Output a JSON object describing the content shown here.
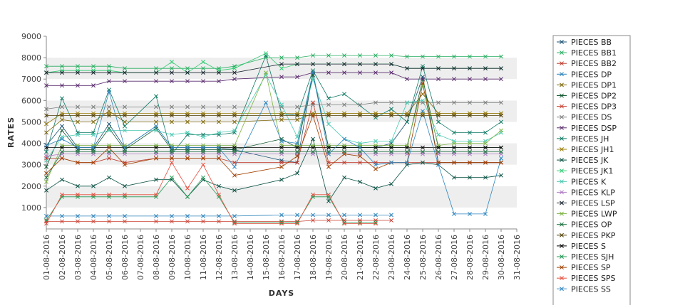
{
  "chart_data": {
    "type": "line",
    "title": "",
    "xlabel": "DAYS",
    "ylabel": "RATES",
    "ylim": [
      0,
      9000
    ],
    "yticks": [
      1000,
      2000,
      3000,
      4000,
      5000,
      6000,
      7000,
      8000,
      9000
    ],
    "grid": "alternating horizontal bands",
    "legend_position": "right",
    "x": [
      "01-08-2016",
      "02-08-2016",
      "03-08-2016",
      "04-08-2016",
      "05-08-2016",
      "06-08-2016",
      "07-08-2016",
      "08-08-2016",
      "09-08-2016",
      "10-08-2016",
      "11-08-2016",
      "12-08-2016",
      "13-08-2016",
      "14-08-2016",
      "15-08-2016",
      "16-08-2016",
      "17-08-2016",
      "18-08-2016",
      "19-08-2016",
      "20-08-2016",
      "21-08-2016",
      "22-08-2016",
      "23-08-2016",
      "24-08-2016",
      "25-08-2016",
      "26-08-2016",
      "27-08-2016",
      "28-08-2016",
      "29-08-2016",
      "30-08-2016",
      "31-08-2016"
    ],
    "series": [
      {
        "name": "PIECES BB",
        "color": "#1a5276",
        "values": [
          3900,
          4800,
          3800,
          3800,
          4900,
          3800,
          null,
          4800,
          3800,
          3800,
          3800,
          3800,
          3700,
          null,
          null,
          3200,
          3100,
          7300,
          3800,
          3800,
          3800,
          3800,
          4000,
          5000,
          7100,
          3100,
          3100,
          3100,
          3100,
          3100,
          null
        ]
      },
      {
        "name": "PIECES BB1",
        "color": "#27ae60",
        "values": [
          7600,
          7600,
          7600,
          7600,
          7600,
          7500,
          null,
          7500,
          7500,
          7500,
          7500,
          7500,
          7600,
          null,
          8000,
          8000,
          8000,
          8100,
          8100,
          8100,
          8100,
          8100,
          8100,
          8050,
          8050,
          8050,
          8050,
          8050,
          8050,
          8050,
          null
        ]
      },
      {
        "name": "PIECES BB2",
        "color": "#c0392b",
        "values": [
          3300,
          3300,
          3100,
          3100,
          3300,
          3100,
          null,
          3300,
          3300,
          3300,
          3300,
          3300,
          3100,
          null,
          null,
          3100,
          3100,
          5900,
          3100,
          3100,
          3100,
          3100,
          3100,
          3100,
          3100,
          3100,
          3100,
          3100,
          3100,
          3100,
          null
        ]
      },
      {
        "name": "PIECES DP",
        "color": "#2980b9",
        "values": [
          600,
          600,
          600,
          600,
          600,
          600,
          null,
          600,
          600,
          600,
          600,
          600,
          600,
          null,
          null,
          650,
          650,
          650,
          650,
          650,
          650,
          650,
          650,
          null,
          null,
          null,
          null,
          null,
          null,
          null,
          null
        ]
      },
      {
        "name": "PIECES DP1",
        "color": "#7d6608",
        "values": [
          4500,
          5100,
          5000,
          5000,
          5500,
          5000,
          null,
          5000,
          5000,
          5000,
          5000,
          5000,
          5000,
          null,
          null,
          5100,
          5100,
          5400,
          5400,
          5400,
          5400,
          5400,
          5400,
          5400,
          6300,
          5400,
          5400,
          5400,
          5400,
          5400,
          null
        ]
      },
      {
        "name": "PIECES DP2",
        "color": "#145a32",
        "values": [
          2900,
          4600,
          3700,
          3700,
          4700,
          3700,
          null,
          4700,
          3700,
          3700,
          3700,
          3700,
          3700,
          null,
          null,
          4200,
          3800,
          7200,
          3800,
          3800,
          3800,
          3800,
          3800,
          3800,
          7000,
          3800,
          3800,
          3800,
          3800,
          3800,
          null
        ]
      },
      {
        "name": "PIECES DP3",
        "color": "#cb4335",
        "values": [
          350,
          350,
          350,
          350,
          350,
          350,
          null,
          350,
          350,
          350,
          350,
          350,
          350,
          null,
          null,
          350,
          350,
          400,
          400,
          400,
          400,
          400,
          400,
          null,
          null,
          null,
          null,
          null,
          null,
          null,
          null
        ]
      },
      {
        "name": "PIECES DS",
        "color": "#7b7d7d",
        "values": [
          5600,
          5700,
          5700,
          5700,
          5700,
          5700,
          null,
          5700,
          5700,
          5700,
          5700,
          5700,
          5700,
          null,
          null,
          5700,
          5700,
          5800,
          5800,
          5800,
          5800,
          5900,
          5900,
          5900,
          5900,
          5900,
          5900,
          5900,
          5900,
          5900,
          null
        ]
      },
      {
        "name": "PIECES DSP",
        "color": "#5b2c6f",
        "values": [
          6700,
          6700,
          6700,
          6700,
          6900,
          6900,
          null,
          6900,
          6900,
          6900,
          6900,
          6900,
          7000,
          null,
          null,
          7100,
          7100,
          7300,
          7300,
          7300,
          7300,
          7300,
          7300,
          7000,
          7000,
          7000,
          7000,
          7000,
          7000,
          7000,
          null
        ]
      },
      {
        "name": "PIECES JH",
        "color": "#117a65",
        "values": [
          3600,
          6100,
          4500,
          4500,
          6500,
          4800,
          null,
          6200,
          3500,
          4400,
          4400,
          4400,
          4500,
          null,
          8100,
          5400,
          5300,
          7400,
          6100,
          6300,
          null,
          5200,
          5600,
          5000,
          7600,
          5000,
          4500,
          4500,
          4500,
          5000,
          null
        ]
      },
      {
        "name": "PIECES JH1",
        "color": "#9a7d0a",
        "values": [
          4900,
          5400,
          5400,
          5400,
          5400,
          5400,
          null,
          5400,
          5400,
          5400,
          5400,
          5400,
          5400,
          null,
          null,
          5400,
          5400,
          5400,
          5400,
          5400,
          5400,
          5400,
          5400,
          5400,
          5400,
          5400,
          5400,
          5400,
          5400,
          5400,
          null
        ]
      },
      {
        "name": "PIECES JK",
        "color": "#0b5345",
        "values": [
          1800,
          2300,
          2000,
          2000,
          2400,
          2000,
          null,
          2300,
          2300,
          1500,
          2300,
          2000,
          1800,
          null,
          null,
          2300,
          2600,
          4200,
          1300,
          2400,
          2200,
          1900,
          2100,
          3000,
          3100,
          3000,
          2400,
          2400,
          2400,
          2500,
          null
        ]
      },
      {
        "name": "PIECES JK1",
        "color": "#2ecc71",
        "values": [
          7300,
          7400,
          7400,
          7400,
          7400,
          7300,
          null,
          7300,
          7800,
          7300,
          7800,
          7400,
          7500,
          null,
          8200,
          7500,
          7700,
          7700,
          7700,
          7700,
          7700,
          7700,
          7700,
          7500,
          7500,
          7500,
          7500,
          7500,
          7500,
          7500,
          null
        ]
      },
      {
        "name": "PIECES K",
        "color": "#48c9b0",
        "values": [
          3200,
          4300,
          4400,
          4400,
          4600,
          4600,
          null,
          4600,
          4400,
          4500,
          4300,
          4500,
          4600,
          null,
          7200,
          5800,
          4300,
          7000,
          4900,
          4200,
          4000,
          4100,
          4100,
          5900,
          6000,
          4400,
          4100,
          4100,
          4100,
          4500,
          null
        ]
      },
      {
        "name": "PIECES KLP",
        "color": "#af7ac5",
        "values": [
          3400,
          3500,
          3500,
          3500,
          3500,
          3500,
          null,
          3500,
          3500,
          3500,
          3500,
          3500,
          3500,
          null,
          null,
          3500,
          3500,
          3500,
          3500,
          3500,
          3500,
          3500,
          3500,
          3500,
          3500,
          3500,
          3500,
          3500,
          3500,
          3500,
          null
        ]
      },
      {
        "name": "PIECES LSP",
        "color": "#1b2631",
        "values": [
          7300,
          7300,
          7300,
          7300,
          7300,
          7300,
          null,
          7300,
          7300,
          7300,
          7300,
          7300,
          7300,
          null,
          null,
          7700,
          7700,
          7700,
          7700,
          7700,
          7700,
          7700,
          7700,
          7500,
          7500,
          7500,
          7500,
          7500,
          7500,
          7500,
          null
        ]
      },
      {
        "name": "PIECES LWP",
        "color": "#7cb342",
        "values": [
          2200,
          3900,
          3900,
          3900,
          3900,
          3900,
          null,
          3900,
          3900,
          3900,
          3900,
          3900,
          3900,
          null,
          7300,
          3900,
          3900,
          3900,
          3900,
          3900,
          3900,
          3900,
          3900,
          3900,
          6700,
          3900,
          4000,
          4000,
          4000,
          4600,
          null
        ]
      },
      {
        "name": "PIECES OP",
        "color": "#196f3d",
        "values": [
          2400,
          3600,
          3600,
          3600,
          3600,
          3600,
          null,
          3600,
          3600,
          3600,
          3600,
          3600,
          3600,
          null,
          null,
          3600,
          3600,
          3600,
          3600,
          3600,
          3600,
          3600,
          3600,
          3600,
          3600,
          3600,
          3600,
          3600,
          3600,
          3600,
          null
        ]
      },
      {
        "name": "PIECES PKP",
        "color": "#4d3b00",
        "values": [
          5300,
          5300,
          5300,
          5300,
          5300,
          5300,
          null,
          5300,
          5300,
          5300,
          5300,
          5300,
          5300,
          null,
          null,
          5300,
          5300,
          5300,
          5300,
          5300,
          5300,
          5300,
          5300,
          5300,
          5300,
          5300,
          5300,
          5300,
          5300,
          5300,
          null
        ]
      },
      {
        "name": "PIECES S",
        "color": "#000000",
        "values": [
          3800,
          3800,
          3800,
          3800,
          3800,
          3800,
          null,
          3800,
          3800,
          3800,
          3800,
          3800,
          3800,
          null,
          null,
          3800,
          3800,
          3800,
          3800,
          3800,
          3800,
          3800,
          3800,
          3800,
          3800,
          3800,
          3800,
          3800,
          3800,
          3800,
          null
        ]
      },
      {
        "name": "PIECES SJH",
        "color": "#229954",
        "values": [
          400,
          1500,
          1500,
          1500,
          1500,
          1500,
          null,
          1500,
          2400,
          1500,
          2400,
          1500,
          300,
          null,
          null,
          300,
          300,
          1500,
          1500,
          300,
          300,
          300,
          null,
          null,
          null,
          null,
          null,
          null,
          null,
          null,
          null
        ]
      },
      {
        "name": "PIECES SP",
        "color": "#a04000",
        "values": [
          2600,
          3300,
          3100,
          3100,
          3800,
          3000,
          null,
          3300,
          3300,
          3300,
          3300,
          3300,
          2500,
          null,
          null,
          2900,
          3400,
          5300,
          2900,
          3500,
          3400,
          2800,
          3100,
          3100,
          6800,
          3100,
          3100,
          3100,
          3100,
          3100,
          null
        ]
      },
      {
        "name": "PIECES SPS",
        "color": "#e74c3c",
        "values": [
          250,
          1600,
          1600,
          1600,
          1600,
          1600,
          null,
          1600,
          3100,
          1900,
          3000,
          1600,
          250,
          null,
          null,
          250,
          250,
          1600,
          1600,
          250,
          250,
          250,
          null,
          null,
          null,
          null,
          null,
          null,
          null,
          null,
          null
        ]
      },
      {
        "name": "PIECES SS",
        "color": "#2e86c1",
        "values": [
          3900,
          4200,
          3800,
          3800,
          6400,
          3800,
          null,
          4800,
          3800,
          3800,
          3800,
          3800,
          2900,
          null,
          5900,
          4100,
          4000,
          7300,
          3500,
          4200,
          3800,
          3000,
          3100,
          3100,
          5500,
          3000,
          700,
          700,
          700,
          3300,
          null
        ]
      }
    ]
  }
}
